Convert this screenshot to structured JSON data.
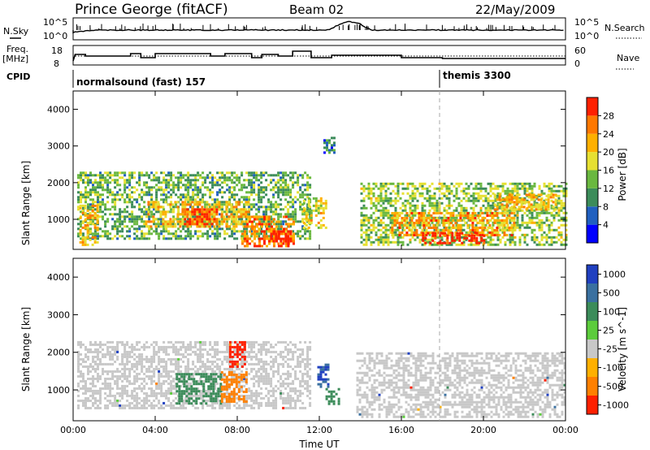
{
  "header": {
    "station": "Prince George (fitACF)",
    "beam": "Beam 02",
    "date": "22/May/2009"
  },
  "panel_labels": {
    "nsky": "N.Sky",
    "nsky_top": "10^5",
    "nsky_bottom": "10^0",
    "nsearch": "N.Search",
    "nsearch_top": "10^5",
    "nsearch_bottom": "10^0",
    "freq_line1": "Freq.",
    "freq_line2": "[MHz]",
    "freq_top": "18",
    "freq_bottom": "8",
    "nave": "Nave",
    "nave_top": "60",
    "nave_bottom": "0",
    "cpid": "CPID",
    "cpid_mode1": "normalsound (fast) 157",
    "cpid_mode2": "themis 3300"
  },
  "chart_data": [
    {
      "type": "heatmap",
      "title": "Power",
      "ylabel": "Slant Range [km]",
      "xlabel": "Time UT",
      "x_ticks": [
        "00:00",
        "04:00",
        "08:00",
        "12:00",
        "16:00",
        "20:00",
        "00:00"
      ],
      "x_range_hours": [
        0,
        24
      ],
      "ylim": [
        180,
        4500
      ],
      "y_ticks": [
        1000,
        2000,
        3000,
        4000
      ],
      "colorbar": {
        "label": "Power [dB]",
        "ticks": [
          "4",
          "8",
          "12",
          "16",
          "20",
          "24",
          "28"
        ],
        "range": [
          0,
          30
        ],
        "colors": [
          "#0000ff",
          "#2060c0",
          "#3c8c5a",
          "#6ab840",
          "#e6e032",
          "#ffb000",
          "#ff7800",
          "#ff2000"
        ]
      },
      "regions": [
        {
          "t": [
            0.2,
            11.5
          ],
          "r": [
            500,
            2300
          ],
          "level": 12
        },
        {
          "t": [
            3.5,
            8.6
          ],
          "r": [
            800,
            1500
          ],
          "level": 20
        },
        {
          "t": [
            5.4,
            7.0
          ],
          "r": [
            900,
            1300
          ],
          "level": 28
        },
        {
          "t": [
            8.2,
            10.8
          ],
          "r": [
            280,
            1100
          ],
          "level": 24
        },
        {
          "t": [
            9.6,
            10.6
          ],
          "r": [
            300,
            700
          ],
          "level": 30
        },
        {
          "t": [
            0.3,
            1.2
          ],
          "r": [
            300,
            1400
          ],
          "level": 20
        },
        {
          "t": [
            11.2,
            12.3
          ],
          "r": [
            800,
            1600
          ],
          "level": 18
        },
        {
          "t": [
            12.2,
            12.7
          ],
          "r": [
            2800,
            3250
          ],
          "level": 8
        },
        {
          "t": [
            14.0,
            24.0
          ],
          "r": [
            280,
            2000
          ],
          "level": 14
        },
        {
          "t": [
            15.5,
            21.5
          ],
          "r": [
            600,
            1200
          ],
          "level": 22
        },
        {
          "t": [
            17.0,
            20.0
          ],
          "r": [
            350,
            650
          ],
          "level": 30
        },
        {
          "t": [
            20.5,
            23.5
          ],
          "r": [
            1300,
            1700
          ],
          "level": 20
        }
      ]
    },
    {
      "type": "heatmap",
      "title": "Velocity",
      "ylabel": "Slant Range [km]",
      "xlabel": "Time UT",
      "x_ticks": [
        "00:00",
        "04:00",
        "08:00",
        "12:00",
        "16:00",
        "20:00",
        "00:00"
      ],
      "x_range_hours": [
        0,
        24
      ],
      "ylim": [
        180,
        4500
      ],
      "y_ticks": [
        1000,
        2000,
        3000,
        4000
      ],
      "colorbar": {
        "label": "Velocity [m s^-1]",
        "ticks": [
          "1000",
          "500",
          "100",
          "25",
          "-25",
          "-100",
          "-500",
          "-1000"
        ],
        "colors": [
          "#2040c0",
          "#3a70a0",
          "#3c8c5a",
          "#5ccc3c",
          "#c8c8c8",
          "#ffb000",
          "#ff8000",
          "#ff2000"
        ]
      },
      "regions": [
        {
          "t": [
            0.2,
            11.5
          ],
          "r": [
            500,
            2300
          ],
          "v": 0
        },
        {
          "t": [
            5.0,
            7.2
          ],
          "r": [
            650,
            1450
          ],
          "v": 150
        },
        {
          "t": [
            7.2,
            8.4
          ],
          "r": [
            700,
            1500
          ],
          "v": -300
        },
        {
          "t": [
            7.6,
            8.4
          ],
          "r": [
            1600,
            2300
          ],
          "v": -800
        },
        {
          "t": [
            11.9,
            12.4
          ],
          "r": [
            1100,
            1700
          ],
          "v": 700
        },
        {
          "t": [
            12.3,
            12.9
          ],
          "r": [
            600,
            1050
          ],
          "v": 120
        },
        {
          "t": [
            13.8,
            24.0
          ],
          "r": [
            280,
            2000
          ],
          "v": 0
        }
      ]
    }
  ]
}
